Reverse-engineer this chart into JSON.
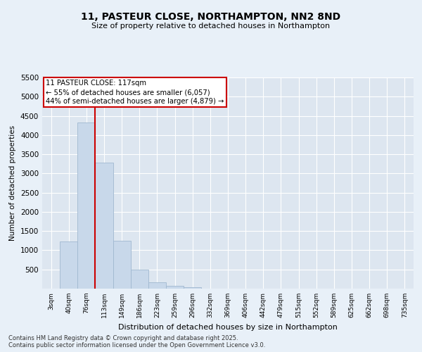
{
  "title_line1": "11, PASTEUR CLOSE, NORTHAMPTON, NN2 8ND",
  "title_line2": "Size of property relative to detached houses in Northampton",
  "xlabel": "Distribution of detached houses by size in Northampton",
  "ylabel": "Number of detached properties",
  "categories": [
    "3sqm",
    "40sqm",
    "76sqm",
    "113sqm",
    "149sqm",
    "186sqm",
    "223sqm",
    "259sqm",
    "296sqm",
    "332sqm",
    "369sqm",
    "406sqm",
    "442sqm",
    "479sqm",
    "515sqm",
    "552sqm",
    "589sqm",
    "625sqm",
    "662sqm",
    "698sqm",
    "735sqm"
  ],
  "values": [
    0,
    1220,
    4320,
    3280,
    1240,
    490,
    170,
    70,
    30,
    0,
    0,
    0,
    0,
    0,
    0,
    0,
    0,
    0,
    0,
    0,
    0
  ],
  "bar_color": "#c8d8ea",
  "bar_edge_color": "#a0b8d0",
  "vline_color": "#cc0000",
  "vline_x": 2.5,
  "annotation_text": "11 PASTEUR CLOSE: 117sqm\n← 55% of detached houses are smaller (6,057)\n44% of semi-detached houses are larger (4,879) →",
  "annotation_box_edgecolor": "#cc0000",
  "ylim": [
    0,
    5500
  ],
  "yticks": [
    0,
    500,
    1000,
    1500,
    2000,
    2500,
    3000,
    3500,
    4000,
    4500,
    5000,
    5500
  ],
  "plot_bg_color": "#dde6f0",
  "fig_bg_color": "#e8f0f8",
  "grid_color": "#ffffff",
  "title1_fontsize": 10,
  "title2_fontsize": 8,
  "footer_line1": "Contains HM Land Registry data © Crown copyright and database right 2025.",
  "footer_line2": "Contains public sector information licensed under the Open Government Licence v3.0."
}
